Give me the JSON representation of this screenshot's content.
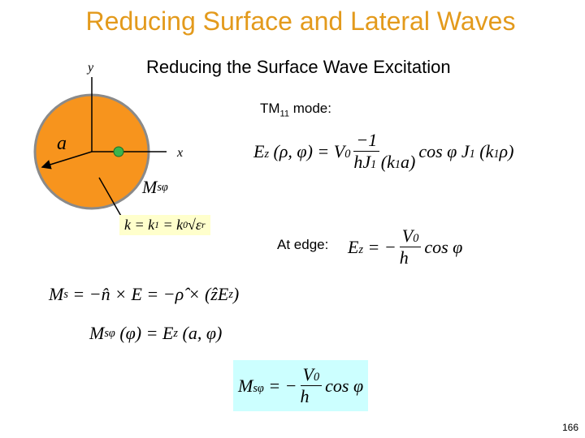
{
  "title": "Reducing Surface and Lateral Waves",
  "subtitle": "Reducing the Surface Wave Excitation",
  "diagram": {
    "y_label": "y",
    "x_label": "x",
    "radius_label": "a",
    "current_label": [
      {
        "text": "M"
      },
      {
        "sub": "sφ"
      }
    ]
  },
  "mode_label": [
    {
      "text": "TM"
    },
    {
      "sub": "11"
    },
    {
      "text": " mode:"
    }
  ],
  "edge_label": "At edge:",
  "equations": {
    "wavenumber": [
      {
        "text": "k = k"
      },
      {
        "sub": "1"
      },
      {
        "text": " = k"
      },
      {
        "sub": "0"
      },
      {
        "text": "√ε"
      },
      {
        "sub": "r"
      }
    ],
    "field": {
      "lhs": [
        {
          "text": "E"
        },
        {
          "sub": "z"
        },
        {
          "text": " (ρ, φ) = V"
        },
        {
          "sub": "0"
        }
      ],
      "numerator": [
        {
          "text": "−1"
        }
      ],
      "denominator": [
        {
          "text": "hJ"
        },
        {
          "sub": "1"
        },
        {
          "text": " (k"
        },
        {
          "sub": "1"
        },
        {
          "text": "a)"
        }
      ],
      "rhs": [
        {
          "text": "cos φ J"
        },
        {
          "sub": "1"
        },
        {
          "text": " (k"
        },
        {
          "sub": "1"
        },
        {
          "text": "ρ)"
        }
      ]
    },
    "edge": {
      "lhs": [
        {
          "text": "E"
        },
        {
          "sub": "z"
        },
        {
          "text": " = −"
        }
      ],
      "numerator": [
        {
          "text": "V"
        },
        {
          "sub": "0"
        }
      ],
      "denominator": [
        {
          "text": "h"
        }
      ],
      "rhs": [
        {
          "text": "cos φ"
        }
      ]
    },
    "surface_current": [
      {
        "text": "M"
      },
      {
        "sub": "s"
      },
      {
        "text": " = −n̂ × E = −ρ̂ × (ẑE"
      },
      {
        "sub": "z"
      },
      {
        "text": ")"
      }
    ],
    "current_phi": [
      {
        "text": "M"
      },
      {
        "sub": "sφ"
      },
      {
        "text": " (φ) = E"
      },
      {
        "sub": "z"
      },
      {
        "text": " (a, φ)"
      }
    ],
    "result": {
      "lhs": [
        {
          "text": "M"
        },
        {
          "sub": "sφ"
        },
        {
          "text": " = −"
        }
      ],
      "numerator": [
        {
          "text": "V"
        },
        {
          "sub": "0"
        }
      ],
      "denominator": [
        {
          "text": "h"
        }
      ],
      "rhs": [
        {
          "text": "cos φ"
        }
      ]
    }
  },
  "page_number": "166"
}
